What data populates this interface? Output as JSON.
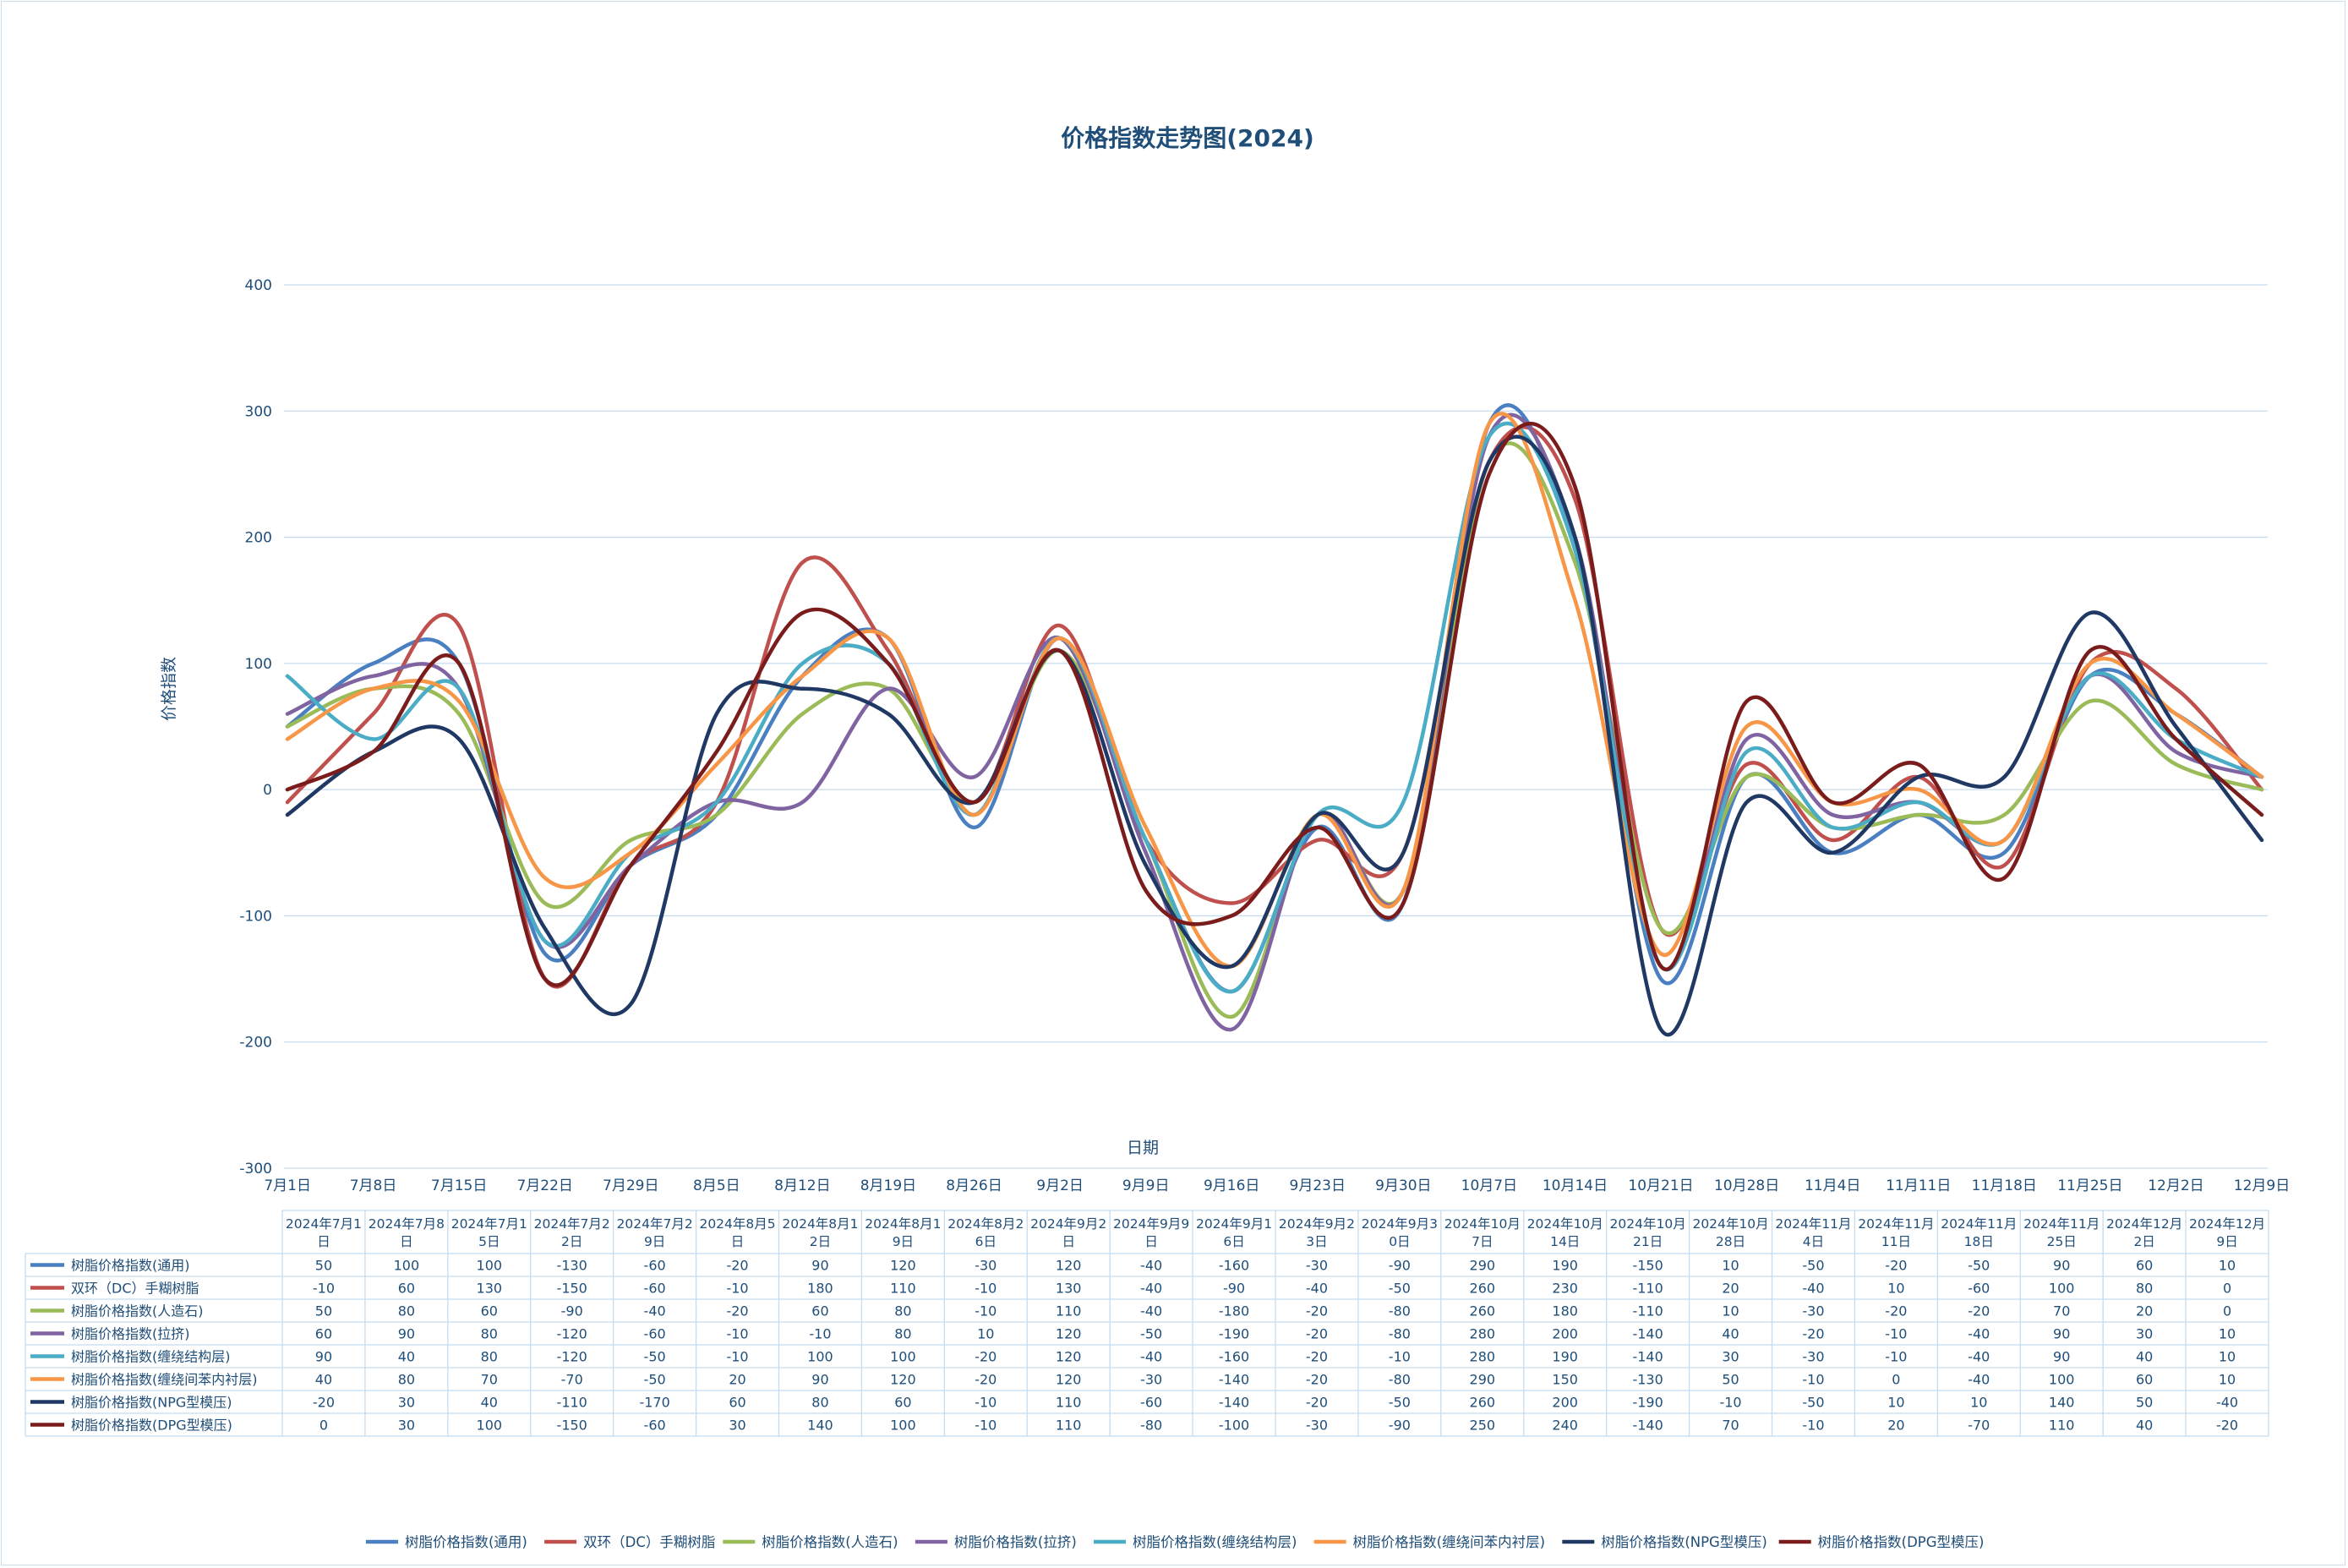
{
  "chart_data": {
    "type": "line",
    "title": "价格指数走势图(2024)",
    "xlabel": "日期",
    "ylabel": "价格指数",
    "ylim": [
      -300,
      400
    ],
    "yticks": [
      400,
      300,
      200,
      100,
      0,
      -100,
      -200,
      -300
    ],
    "grid": true,
    "legend": "bottom",
    "categories": [
      "7月1日",
      "7月8日",
      "7月15日",
      "7月22日",
      "7月29日",
      "8月5日",
      "8月12日",
      "8月19日",
      "8月26日",
      "9月2日",
      "9月9日",
      "9月16日",
      "9月23日",
      "9月30日",
      "10月7日",
      "10月14日",
      "10月21日",
      "10月28日",
      "11月4日",
      "11月11日",
      "11月18日",
      "11月25日",
      "12月2日",
      "12月9日"
    ],
    "table_headers": [
      "2024年7月1日",
      "2024年7月8日",
      "2024年7月15日",
      "2024年7月22日",
      "2024年7月29日",
      "2024年8月5日",
      "2024年8月12日",
      "2024年8月19日",
      "2024年8月26日",
      "2024年9月2日",
      "2024年9月9日",
      "2024年9月16日",
      "2024年9月23日",
      "2024年9月30日",
      "2024年10月7日",
      "2024年10月14日",
      "2024年10月21日",
      "2024年10月28日",
      "2024年11月4日",
      "2024年11月11日",
      "2024年11月18日",
      "2024年11月25日",
      "2024年12月2日",
      "2024年12月9日"
    ],
    "series": [
      {
        "name": "树脂价格指数(通用)",
        "color": "#4a7fc1",
        "values": [
          50,
          100,
          100,
          -130,
          -60,
          -20,
          90,
          120,
          -30,
          120,
          -40,
          -160,
          -30,
          -90,
          290,
          190,
          -150,
          10,
          -50,
          -20,
          -50,
          90,
          60,
          10
        ]
      },
      {
        "name": "双环（DC）手糊树脂",
        "color": "#c0504d",
        "values": [
          -10,
          60,
          130,
          -150,
          -60,
          -10,
          180,
          110,
          -10,
          130,
          -40,
          -90,
          -40,
          -50,
          260,
          230,
          -110,
          20,
          -40,
          10,
          -60,
          100,
          80,
          0
        ]
      },
      {
        "name": "树脂价格指数(人造石)",
        "color": "#9bbb59",
        "values": [
          50,
          80,
          60,
          -90,
          -40,
          -20,
          60,
          80,
          -10,
          110,
          -40,
          -180,
          -20,
          -80,
          260,
          180,
          -110,
          10,
          -30,
          -20,
          -20,
          70,
          20,
          0
        ]
      },
      {
        "name": "树脂价格指数(拉挤)",
        "color": "#8064a2",
        "values": [
          60,
          90,
          80,
          -120,
          -60,
          -10,
          -10,
          80,
          10,
          120,
          -50,
          -190,
          -20,
          -80,
          280,
          200,
          -140,
          40,
          -20,
          -10,
          -40,
          90,
          30,
          10
        ]
      },
      {
        "name": "树脂价格指数(缠绕结构层)",
        "color": "#4bacc6",
        "values": [
          90,
          40,
          80,
          -120,
          -50,
          -10,
          100,
          100,
          -20,
          120,
          -40,
          -160,
          -20,
          -10,
          280,
          190,
          -140,
          30,
          -30,
          -10,
          -40,
          90,
          40,
          10
        ]
      },
      {
        "name": "树脂价格指数(缠绕间苯内衬层)",
        "color": "#f79646",
        "values": [
          40,
          80,
          70,
          -70,
          -50,
          20,
          90,
          120,
          -20,
          120,
          -30,
          -140,
          -20,
          -80,
          290,
          150,
          -130,
          50,
          -10,
          0,
          -40,
          100,
          60,
          10
        ]
      },
      {
        "name": "树脂价格指数(NPG型模压)",
        "color": "#1f3864",
        "values": [
          -20,
          30,
          40,
          -110,
          -170,
          60,
          80,
          60,
          -10,
          110,
          -60,
          -140,
          -20,
          -50,
          260,
          200,
          -190,
          -10,
          -50,
          10,
          10,
          140,
          50,
          -40
        ]
      },
      {
        "name": "树脂价格指数(DPG型模压)",
        "color": "#7b1c1c",
        "values": [
          0,
          30,
          100,
          -150,
          -60,
          30,
          140,
          100,
          -10,
          110,
          -80,
          -100,
          -30,
          -90,
          250,
          240,
          -140,
          70,
          -10,
          20,
          -70,
          110,
          40,
          -20
        ]
      }
    ]
  }
}
